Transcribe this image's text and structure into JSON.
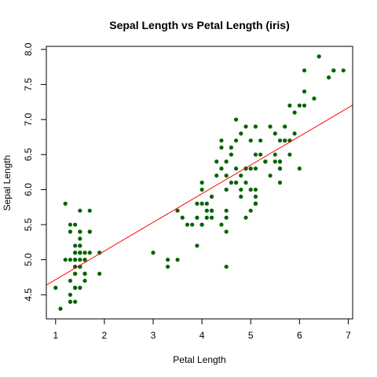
{
  "chart_data": {
    "type": "scatter",
    "title": "Sepal Length vs Petal Length (iris)",
    "xlabel": "Petal Length",
    "ylabel": "Sepal Length",
    "xlim": [
      0.81,
      7.09
    ],
    "ylim": [
      4.156,
      8.044
    ],
    "xticks": [
      1,
      2,
      3,
      4,
      5,
      6,
      7
    ],
    "yticks": [
      "4.5",
      "5.0",
      "5.5",
      "6.0",
      "6.5",
      "7.0",
      "7.5",
      "8.0"
    ],
    "point_color": "#006400",
    "fit_line_color": "#ff0000",
    "fit_line": {
      "intercept": 4.3066,
      "slope": 0.4089
    },
    "series": [
      {
        "x": [
          1.4,
          1.4,
          1.3,
          1.5,
          1.4,
          1.7,
          1.4,
          1.5,
          1.4,
          1.5,
          1.5,
          1.6,
          1.4,
          1.1,
          1.2,
          1.5,
          1.3,
          1.4,
          1.7,
          1.5,
          1.7,
          1.5,
          1.0,
          1.7,
          1.9,
          1.6,
          1.6,
          1.5,
          1.4,
          1.6,
          1.6,
          1.5,
          1.5,
          1.4,
          1.5,
          1.2,
          1.3,
          1.4,
          1.3,
          1.5,
          1.3,
          1.3,
          1.3,
          1.6,
          1.9,
          1.4,
          1.6,
          1.4,
          1.5,
          1.4,
          4.7,
          4.5,
          4.9,
          4.0,
          4.6,
          4.5,
          4.7,
          3.3,
          4.6,
          3.9,
          3.5,
          4.2,
          4.0,
          4.7,
          3.6,
          4.4,
          4.5,
          4.1,
          4.5,
          3.9,
          4.8,
          4.0,
          4.9,
          4.7,
          4.3,
          4.4,
          4.8,
          5.0,
          4.5,
          3.5,
          3.8,
          3.7,
          3.9,
          5.1,
          4.5,
          4.5,
          4.7,
          4.4,
          4.1,
          4.0,
          4.4,
          4.6,
          4.0,
          3.3,
          4.2,
          4.2,
          4.2,
          4.3,
          3.0,
          4.1,
          6.0,
          5.1,
          5.9,
          5.6,
          5.8,
          6.6,
          4.5,
          6.3,
          5.8,
          6.1,
          5.1,
          5.3,
          5.5,
          5.0,
          5.1,
          5.3,
          5.5,
          6.7,
          6.9,
          5.0,
          5.7,
          4.9,
          6.7,
          4.9,
          5.7,
          6.0,
          4.8,
          4.9,
          5.6,
          5.8,
          6.1,
          6.4,
          5.6,
          5.1,
          5.6,
          6.1,
          5.6,
          5.5,
          4.8,
          5.4,
          5.6,
          5.1,
          5.1,
          5.9,
          5.7,
          5.2,
          5.0,
          5.2,
          5.4,
          5.1
        ],
        "y": [
          5.1,
          4.9,
          4.7,
          4.6,
          5.0,
          5.4,
          4.6,
          5.0,
          4.4,
          4.9,
          5.4,
          4.8,
          4.8,
          4.3,
          5.8,
          5.7,
          5.4,
          5.1,
          5.7,
          5.1,
          5.4,
          5.1,
          4.6,
          5.1,
          4.8,
          5.0,
          5.0,
          5.2,
          5.2,
          4.7,
          4.8,
          5.4,
          5.2,
          5.5,
          4.9,
          5.0,
          5.5,
          4.9,
          4.4,
          5.1,
          5.0,
          4.5,
          4.4,
          5.0,
          5.1,
          4.8,
          5.1,
          4.6,
          5.3,
          5.0,
          7.0,
          6.4,
          6.9,
          5.5,
          6.5,
          5.7,
          6.3,
          4.9,
          6.6,
          5.2,
          5.0,
          5.9,
          6.0,
          6.1,
          5.6,
          6.7,
          5.6,
          5.8,
          6.2,
          5.6,
          5.9,
          6.1,
          6.3,
          6.1,
          6.4,
          6.6,
          6.8,
          6.7,
          6.0,
          5.7,
          5.5,
          5.5,
          5.8,
          6.0,
          5.4,
          6.0,
          6.7,
          6.3,
          5.6,
          5.5,
          5.5,
          6.1,
          5.8,
          5.0,
          5.6,
          5.7,
          5.7,
          6.2,
          5.1,
          5.7,
          6.3,
          5.8,
          7.1,
          6.3,
          6.5,
          7.6,
          4.9,
          7.3,
          6.7,
          7.2,
          6.5,
          6.4,
          6.8,
          5.7,
          5.8,
          6.4,
          6.5,
          7.7,
          7.7,
          6.0,
          6.9,
          5.6,
          7.7,
          6.3,
          6.7,
          7.2,
          6.2,
          6.1,
          6.4,
          7.2,
          7.4,
          7.9,
          6.4,
          6.3,
          6.1,
          7.7,
          6.3,
          6.4,
          6.0,
          6.9,
          6.7,
          6.9,
          5.8,
          6.8,
          6.7,
          6.7,
          6.3,
          6.5,
          6.2,
          5.9
        ]
      }
    ]
  }
}
